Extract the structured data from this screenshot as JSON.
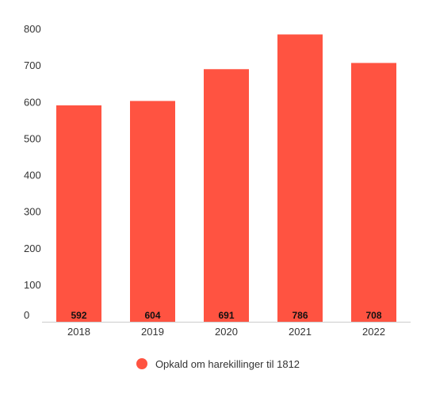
{
  "colors": {
    "bar": "#ff5341",
    "axis": "#cccccc",
    "text": "#333333"
  },
  "chart_data": {
    "type": "bar",
    "categories": [
      "2018",
      "2019",
      "2020",
      "2021",
      "2022"
    ],
    "series": [
      {
        "name": "Opkald om harekillinger til 1812",
        "values": [
          592,
          604,
          691,
          786,
          708
        ]
      }
    ],
    "yticks": [
      "0",
      "100",
      "200",
      "300",
      "400",
      "500",
      "600",
      "700",
      "800"
    ],
    "ylim": [
      0,
      800
    ],
    "grid": false,
    "legend_position": "bottom",
    "data_labels": [
      "592",
      "604",
      "691",
      "786",
      "708"
    ]
  }
}
